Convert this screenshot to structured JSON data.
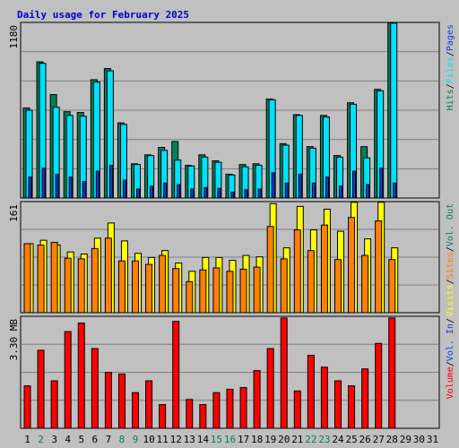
{
  "title": "Daily usage for February 2025",
  "colors": {
    "background": "#c0c0c0",
    "panel": "#c0c0c0",
    "grid": "#808080",
    "hits": "#00805c",
    "files": "#00e0ff",
    "pages": "#1040e0",
    "visits": "#ffff00",
    "sites": "#ff8000",
    "volume": "#ff0000",
    "weekday": "#000000",
    "weekend": "#00805c"
  },
  "chart_data": [
    {
      "type": "bar",
      "panel": "hits-files-pages",
      "ylabel": "1180",
      "ymax": 1180,
      "categories": [
        "1",
        "2",
        "3",
        "4",
        "5",
        "6",
        "7",
        "8",
        "9",
        "10",
        "11",
        "12",
        "13",
        "14",
        "15",
        "16",
        "17",
        "18",
        "19",
        "20",
        "21",
        "22",
        "23",
        "24",
        "25",
        "26",
        "27",
        "28"
      ],
      "series": [
        {
          "name": "Hits",
          "values": [
            605,
            915,
            695,
            580,
            575,
            795,
            870,
            505,
            230,
            290,
            340,
            380,
            220,
            290,
            250,
            160,
            225,
            230,
            665,
            365,
            560,
            345,
            555,
            285,
            640,
            345,
            730,
            1180
          ]
        },
        {
          "name": "Files",
          "values": [
            590,
            905,
            610,
            555,
            550,
            780,
            855,
            495,
            225,
            285,
            320,
            255,
            215,
            275,
            240,
            155,
            210,
            220,
            660,
            355,
            555,
            335,
            545,
            275,
            630,
            270,
            720,
            1175
          ]
        },
        {
          "name": "Pages",
          "values": [
            140,
            200,
            160,
            140,
            110,
            180,
            220,
            120,
            60,
            80,
            100,
            90,
            60,
            70,
            65,
            40,
            55,
            60,
            170,
            100,
            160,
            100,
            140,
            80,
            180,
            90,
            200,
            100
          ]
        }
      ]
    },
    {
      "type": "bar",
      "panel": "visits-sites",
      "ylabel": "161",
      "ymax": 161,
      "categories": [
        "1",
        "2",
        "3",
        "4",
        "5",
        "6",
        "7",
        "8",
        "9",
        "10",
        "11",
        "12",
        "13",
        "14",
        "15",
        "16",
        "17",
        "18",
        "19",
        "20",
        "21",
        "22",
        "23",
        "24",
        "25",
        "26",
        "27",
        "28"
      ],
      "series": [
        {
          "name": "Visits",
          "values": [
            100,
            105,
            98,
            88,
            85,
            108,
            130,
            104,
            86,
            80,
            90,
            72,
            60,
            80,
            80,
            76,
            83,
            81,
            158,
            94,
            154,
            120,
            150,
            118,
            160,
            107,
            160,
            94
          ]
        },
        {
          "name": "Sites",
          "values": [
            100,
            98,
            102,
            79,
            78,
            93,
            108,
            75,
            75,
            70,
            83,
            64,
            45,
            62,
            65,
            60,
            63,
            66,
            125,
            78,
            120,
            90,
            127,
            77,
            138,
            83,
            133,
            77
          ]
        }
      ]
    },
    {
      "type": "bar",
      "panel": "volume",
      "ylabel": "3.30 MB",
      "ymax": 3.3,
      "categories": [
        "1",
        "2",
        "3",
        "4",
        "5",
        "6",
        "7",
        "8",
        "9",
        "10",
        "11",
        "12",
        "13",
        "14",
        "15",
        "16",
        "17",
        "18",
        "19",
        "20",
        "21",
        "22",
        "23",
        "24",
        "25",
        "26",
        "27",
        "28"
      ],
      "series": [
        {
          "name": "Volume",
          "values": [
            1.25,
            2.3,
            1.4,
            2.85,
            3.1,
            2.35,
            1.65,
            1.6,
            1.05,
            1.4,
            0.7,
            3.15,
            0.85,
            0.7,
            1.05,
            1.15,
            1.2,
            1.7,
            2.35,
            3.25,
            1.1,
            2.15,
            1.8,
            1.4,
            1.25,
            1.75,
            2.5,
            3.25
          ]
        }
      ]
    }
  ],
  "days": [
    {
      "label": "1",
      "weekend": false
    },
    {
      "label": "2",
      "weekend": true
    },
    {
      "label": "3",
      "weekend": false
    },
    {
      "label": "4",
      "weekend": false
    },
    {
      "label": "5",
      "weekend": false
    },
    {
      "label": "6",
      "weekend": false
    },
    {
      "label": "7",
      "weekend": false
    },
    {
      "label": "8",
      "weekend": true
    },
    {
      "label": "9",
      "weekend": true
    },
    {
      "label": "10",
      "weekend": false
    },
    {
      "label": "11",
      "weekend": false
    },
    {
      "label": "12",
      "weekend": false
    },
    {
      "label": "13",
      "weekend": false
    },
    {
      "label": "14",
      "weekend": false
    },
    {
      "label": "15",
      "weekend": true
    },
    {
      "label": "16",
      "weekend": true
    },
    {
      "label": "17",
      "weekend": false
    },
    {
      "label": "18",
      "weekend": false
    },
    {
      "label": "19",
      "weekend": false
    },
    {
      "label": "20",
      "weekend": false
    },
    {
      "label": "21",
      "weekend": false
    },
    {
      "label": "22",
      "weekend": true
    },
    {
      "label": "23",
      "weekend": true
    },
    {
      "label": "24",
      "weekend": false
    },
    {
      "label": "25",
      "weekend": false
    },
    {
      "label": "26",
      "weekend": false
    },
    {
      "label": "27",
      "weekend": false
    },
    {
      "label": "28",
      "weekend": false
    },
    {
      "label": "29",
      "weekend": false
    },
    {
      "label": "30",
      "weekend": false
    },
    {
      "label": "31",
      "weekend": false
    }
  ],
  "legends": {
    "top": [
      {
        "text": "Hits",
        "color": "#00805c"
      },
      {
        "text": "/",
        "color": "#000000"
      },
      {
        "text": "Files",
        "color": "#00e0ff"
      },
      {
        "text": "/",
        "color": "#000000"
      },
      {
        "text": "Pages",
        "color": "#1040e0"
      }
    ],
    "middle": [
      {
        "text": "Visits",
        "color": "#ffff00"
      },
      {
        "text": "/",
        "color": "#000000"
      },
      {
        "text": "Sites",
        "color": "#ff8000"
      },
      {
        "text": "/",
        "color": "#000000"
      },
      {
        "text": "Vol. Out",
        "color": "#00805c"
      }
    ],
    "bottom": [
      {
        "text": "Volume",
        "color": "#ff0000"
      },
      {
        "text": "/",
        "color": "#000000"
      },
      {
        "text": "Vol. In",
        "color": "#1040e0"
      },
      {
        "text": "/",
        "color": "#000000"
      }
    ]
  }
}
